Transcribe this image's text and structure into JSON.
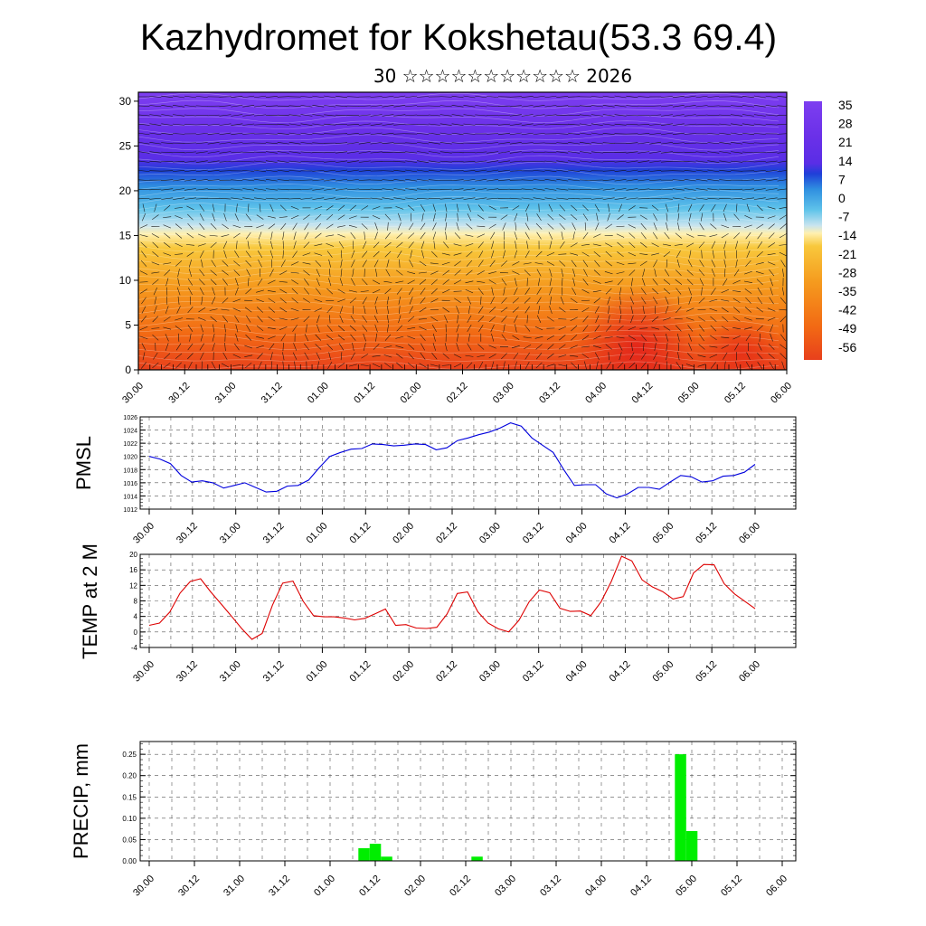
{
  "title": "Kazhydromet for Kokshetau(53.3 69.4)",
  "subtitle": "30 ☆☆☆☆☆☆☆☆☆☆☆ 2026",
  "colors": {
    "pmsl_line": "#0000dd",
    "temp_line": "#dd0000",
    "precip_bar": "#00ee00",
    "frame": "#000000",
    "grid": "#555555"
  },
  "chart_data": [
    {
      "type": "heatmap",
      "title": "",
      "xlabel": "",
      "ylabel": "",
      "x_ticks": [
        "30.00",
        "30.12",
        "31.00",
        "31.12",
        "01.00",
        "01.12",
        "02.00",
        "02.12",
        "03.00",
        "03.12",
        "04.00",
        "04.12",
        "05.00",
        "05.12",
        "06.00"
      ],
      "y_ticks": [
        "0",
        "5",
        "10",
        "15",
        "20",
        "25",
        "30"
      ],
      "ylim": [
        0,
        31
      ],
      "colorbar_labels": [
        "35",
        "28",
        "21",
        "14",
        "7",
        "0",
        "-7",
        "-14",
        "-21",
        "-28",
        "-35",
        "-42",
        "-49",
        "-56"
      ],
      "colorbar_range": [
        -60,
        40
      ],
      "overlay": "wind vectors"
    },
    {
      "type": "line",
      "ylabel": "PMSL",
      "x_ticks": [
        "30.00",
        "30.12",
        "31.00",
        "31.12",
        "01.00",
        "01.12",
        "02.00",
        "02.12",
        "03.00",
        "03.12",
        "04.00",
        "04.12",
        "05.00",
        "05.12",
        "06.00"
      ],
      "y_ticks": [
        "1012",
        "1014",
        "1016",
        "1018",
        "1020",
        "1022",
        "1024",
        "1026"
      ],
      "ylim": [
        1012,
        1026
      ],
      "series": [
        {
          "values": [
            1020.0,
            1019.6,
            1018.9,
            1017.1,
            1016.1,
            1016.3,
            1016.0,
            1015.2,
            1015.6,
            1016.0,
            1015.3,
            1014.6,
            1014.7,
            1015.5,
            1015.6,
            1016.4,
            1018.3,
            1020.0,
            1020.6,
            1021.1,
            1021.2,
            1021.9,
            1021.8,
            1021.6,
            1021.7,
            1021.9,
            1021.8,
            1021.0,
            1021.3,
            1022.4,
            1022.8,
            1023.3,
            1023.7,
            1024.3,
            1025.1,
            1024.6,
            1022.8,
            1021.7,
            1020.6,
            1018.0,
            1015.6,
            1015.7,
            1015.7,
            1014.3,
            1013.7,
            1014.3,
            1015.3,
            1015.3,
            1015.0,
            1016.1,
            1017.1,
            1016.9,
            1016.1,
            1016.3,
            1017.0,
            1017.1,
            1017.6,
            1018.8
          ]
        }
      ]
    },
    {
      "type": "line",
      "ylabel": "TEMP at 2 M",
      "x_ticks": [
        "30.00",
        "30.12",
        "31.00",
        "31.12",
        "01.00",
        "01.12",
        "02.00",
        "02.12",
        "03.00",
        "03.12",
        "04.00",
        "04.12",
        "05.00",
        "05.12",
        "06.00"
      ],
      "y_ticks": [
        "-4",
        "0",
        "4",
        "8",
        "12",
        "16",
        "20"
      ],
      "ylim": [
        -4,
        20
      ],
      "series": [
        {
          "values": [
            1.7,
            2.3,
            5.1,
            10.0,
            13.0,
            13.7,
            10.3,
            7.2,
            4.1,
            0.9,
            -1.9,
            -0.4,
            6.9,
            12.6,
            13.1,
            7.9,
            4.2,
            3.9,
            3.9,
            3.6,
            3.1,
            3.5,
            4.7,
            5.9,
            1.7,
            1.9,
            1.0,
            0.9,
            1.2,
            4.6,
            9.9,
            10.3,
            5.2,
            2.3,
            0.8,
            0.0,
            3.0,
            7.8,
            10.8,
            10.1,
            6.1,
            5.3,
            5.4,
            4.2,
            7.8,
            13.0,
            19.5,
            18.3,
            13.4,
            11.6,
            10.4,
            8.5,
            9.1,
            15.2,
            17.4,
            17.3,
            12.4,
            9.8,
            7.9,
            6.0
          ]
        }
      ]
    },
    {
      "type": "bar",
      "ylabel": "PRECIP, mm",
      "x_ticks": [
        "30.00",
        "30.12",
        "31.00",
        "31.12",
        "01.00",
        "01.12",
        "02.00",
        "02.12",
        "03.00",
        "03.12",
        "04.00",
        "04.12",
        "05.00",
        "05.12",
        "06.00"
      ],
      "y_ticks": [
        "0.00",
        "0.05",
        "0.10",
        "0.15",
        "0.20",
        "0.25"
      ],
      "ylim": [
        0,
        0.28
      ],
      "bars": [
        {
          "hour": 57,
          "value": 0.03
        },
        {
          "hour": 60,
          "value": 0.04
        },
        {
          "hour": 63,
          "value": 0.01
        },
        {
          "hour": 87,
          "value": 0.01
        },
        {
          "hour": 141,
          "value": 0.25
        },
        {
          "hour": 144,
          "value": 0.07
        }
      ]
    }
  ]
}
